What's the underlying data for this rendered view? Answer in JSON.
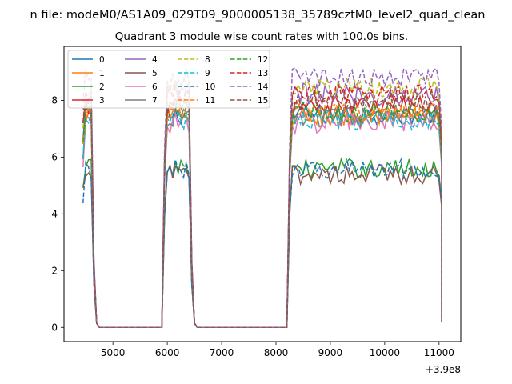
{
  "chart_data": {
    "type": "line",
    "suptitle": "n file: modeM0/AS1A09_029T09_9000005138_35789cztM0_level2_quad_clean",
    "title": "Quadrant 3 module wise count rates with 100.0s bins.",
    "xlabel": "",
    "ylabel": "",
    "x_offset_label": "+3.9e8",
    "xlim": [
      4100,
      11400
    ],
    "ylim": [
      -0.5,
      9.9
    ],
    "xticks": [
      5000,
      6000,
      7000,
      8000,
      9000,
      10000,
      11000
    ],
    "yticks": [
      0,
      2,
      4,
      6,
      8
    ],
    "grid": false,
    "legend_position": "upper-left",
    "legend_columns": 4,
    "segments": [
      {
        "start": 4450,
        "end": 4650
      },
      {
        "start": 5950,
        "end": 6450
      },
      {
        "start": 8250,
        "end": 11050
      }
    ],
    "zero_gaps": [
      [
        4750,
        5950
      ],
      [
        6550,
        8250
      ]
    ],
    "x_step": 50,
    "series": [
      {
        "name": "0",
        "color": "#1f77b4",
        "dash": false,
        "level": 7.5,
        "noise": 0.35
      },
      {
        "name": "1",
        "color": "#ff7f0e",
        "dash": false,
        "level": 7.4,
        "noise": 0.4
      },
      {
        "name": "2",
        "color": "#2ca02c",
        "dash": false,
        "level": 5.6,
        "noise": 0.35
      },
      {
        "name": "3",
        "color": "#d62728",
        "dash": false,
        "level": 7.8,
        "noise": 0.35
      },
      {
        "name": "4",
        "color": "#9467bd",
        "dash": false,
        "level": 8.2,
        "noise": 0.4
      },
      {
        "name": "5",
        "color": "#8c564b",
        "dash": false,
        "level": 5.4,
        "noise": 0.35
      },
      {
        "name": "6",
        "color": "#e377c2",
        "dash": false,
        "level": 7.2,
        "noise": 0.4
      },
      {
        "name": "7",
        "color": "#7f7f7f",
        "dash": false,
        "level": 7.4,
        "noise": 0.35
      },
      {
        "name": "8",
        "color": "#bcbd22",
        "dash": true,
        "level": 8.4,
        "noise": 0.4
      },
      {
        "name": "9",
        "color": "#17becf",
        "dash": true,
        "level": 7.3,
        "noise": 0.35
      },
      {
        "name": "10",
        "color": "#1f77b4",
        "dash": true,
        "level": 5.6,
        "noise": 0.35
      },
      {
        "name": "11",
        "color": "#ff7f0e",
        "dash": true,
        "level": 7.6,
        "noise": 0.35
      },
      {
        "name": "12",
        "color": "#2ca02c",
        "dash": true,
        "level": 7.6,
        "noise": 0.35
      },
      {
        "name": "13",
        "color": "#d62728",
        "dash": true,
        "level": 8.2,
        "noise": 0.35
      },
      {
        "name": "14",
        "color": "#9467bd",
        "dash": true,
        "level": 8.8,
        "noise": 0.35
      },
      {
        "name": "15",
        "color": "#8c564b",
        "dash": true,
        "level": 8.0,
        "noise": 0.35
      }
    ]
  }
}
